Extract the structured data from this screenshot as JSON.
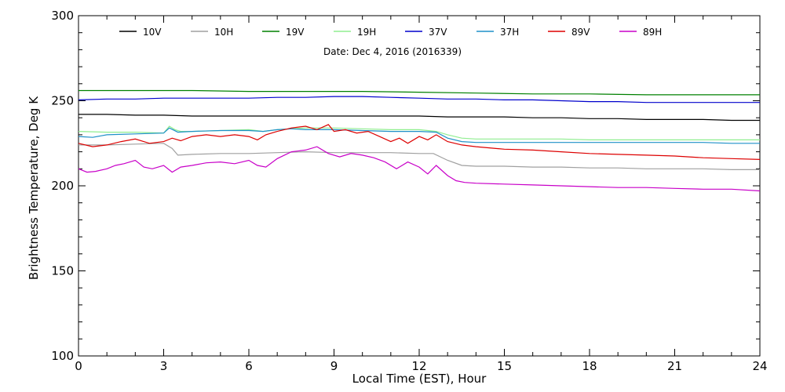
{
  "chart_data": {
    "type": "line",
    "subtitle": "Date: Dec  4, 2016 (2016339)",
    "xlabel": "Local Time (EST), Hour",
    "ylabel": "Brightness Temperature, Deg K",
    "xlim": [
      0,
      24
    ],
    "ylim": [
      100,
      300
    ],
    "x_ticks": [
      0,
      3,
      6,
      9,
      12,
      15,
      18,
      21,
      24
    ],
    "y_ticks": [
      100,
      150,
      200,
      250,
      300
    ],
    "grid": false,
    "legend_position": "top",
    "series": [
      {
        "name": "10V",
        "color": "#000000",
        "x": [
          0,
          1,
          2,
          3,
          4,
          5,
          6,
          7,
          8,
          9,
          10,
          11,
          12,
          13,
          14,
          15,
          16,
          17,
          18,
          19,
          20,
          21,
          22,
          23,
          24
        ],
        "y": [
          242,
          242,
          241.5,
          241.5,
          241,
          241,
          241,
          241,
          241,
          241,
          241,
          241,
          241,
          240.5,
          240.5,
          240.5,
          240,
          240,
          239.5,
          239.5,
          239,
          239,
          239,
          238.5,
          238.5
        ]
      },
      {
        "name": "10H",
        "color": "#a0a0a0",
        "x": [
          0,
          1,
          2,
          3,
          3.3,
          3.5,
          4,
          5,
          6,
          7,
          8,
          9,
          10,
          11,
          12,
          12.5,
          13,
          13.5,
          14,
          15,
          16,
          17,
          18,
          19,
          20,
          21,
          22,
          23,
          24
        ],
        "y": [
          224,
          224,
          224.5,
          225,
          222,
          218,
          218.5,
          219,
          219,
          219.5,
          220,
          219.5,
          219.5,
          219.5,
          219,
          219,
          215,
          212,
          211.5,
          211.5,
          211,
          211,
          210.5,
          210.5,
          210,
          210,
          210,
          209.5,
          209.5
        ]
      },
      {
        "name": "19V",
        "color": "#008000",
        "x": [
          0,
          2,
          4,
          6,
          8,
          10,
          12,
          14,
          16,
          18,
          20,
          22,
          24
        ],
        "y": [
          256,
          256,
          256,
          255.5,
          255.5,
          255.5,
          255,
          254.5,
          254,
          254,
          253.5,
          253.5,
          253.5
        ]
      },
      {
        "name": "19H",
        "color": "#90ee90",
        "x": [
          0,
          1,
          2,
          3,
          3.2,
          3.4,
          3.6,
          4,
          5,
          6,
          6.5,
          7,
          8,
          9,
          10,
          11,
          12,
          12.6,
          13,
          13.5,
          14,
          15,
          16,
          17,
          18,
          19,
          20,
          21,
          22,
          23,
          24
        ],
        "y": [
          232,
          231.5,
          231.5,
          231,
          235,
          233,
          232,
          232,
          232.5,
          233,
          232,
          233,
          234,
          234,
          233.5,
          233,
          233,
          232,
          230,
          228,
          227.5,
          227.5,
          227.5,
          227.5,
          227,
          227,
          227,
          227,
          227,
          227,
          227
        ]
      },
      {
        "name": "37V",
        "color": "#0000cc",
        "x": [
          0,
          1,
          2,
          3,
          4,
          5,
          6,
          7,
          8,
          9,
          10,
          11,
          12,
          13,
          14,
          15,
          16,
          17,
          18,
          19,
          20,
          21,
          22,
          23,
          24
        ],
        "y": [
          250.5,
          251,
          251,
          251.5,
          251.5,
          251.5,
          251.5,
          252,
          252,
          252.5,
          252.5,
          252,
          251.5,
          251,
          251,
          250.5,
          250.5,
          250,
          249.5,
          249.5,
          249,
          249,
          249,
          249,
          249
        ]
      },
      {
        "name": "37H",
        "color": "#1e90c8",
        "x": [
          0,
          0.5,
          1,
          2,
          3,
          3.2,
          3.5,
          4,
          5,
          6,
          6.5,
          7,
          7.5,
          8,
          9,
          10,
          11,
          12,
          12.6,
          13,
          13.5,
          14,
          15,
          16,
          17,
          18,
          19,
          20,
          21,
          22,
          23,
          24
        ],
        "y": [
          229,
          228.5,
          230,
          230.5,
          231,
          234,
          231.5,
          232,
          232.5,
          232.5,
          232,
          233,
          233.5,
          233,
          233,
          232.5,
          232,
          232,
          231.5,
          228,
          226,
          225.5,
          225.5,
          225.5,
          225.5,
          225.5,
          225.5,
          225.5,
          225.5,
          225.5,
          225,
          225
        ]
      },
      {
        "name": "89V",
        "color": "#dd0000",
        "x": [
          0,
          0.5,
          1,
          1.5,
          2,
          2.5,
          3,
          3.3,
          3.6,
          4,
          4.5,
          5,
          5.5,
          6,
          6.3,
          6.6,
          7,
          7.5,
          8,
          8.4,
          8.8,
          9,
          9.4,
          9.8,
          10.2,
          10.6,
          11,
          11.3,
          11.6,
          12,
          12.3,
          12.6,
          13,
          13.5,
          14,
          15,
          16,
          17,
          18,
          19,
          20,
          21,
          22,
          23,
          24
        ],
        "y": [
          225,
          223,
          224,
          226,
          227.5,
          225,
          226,
          228,
          226.5,
          229,
          230,
          229,
          230,
          229,
          227,
          230,
          232,
          234,
          235,
          233,
          236,
          232,
          233,
          231,
          232,
          229,
          226,
          228,
          225,
          229,
          227,
          230,
          226,
          224,
          223,
          221.5,
          221,
          220,
          219,
          218.5,
          218,
          217.5,
          216.5,
          216,
          215.5
        ]
      },
      {
        "name": "89H",
        "color": "#c800c8",
        "x": [
          0,
          0.3,
          0.6,
          1,
          1.3,
          1.6,
          2,
          2.3,
          2.6,
          3,
          3.3,
          3.6,
          4,
          4.5,
          5,
          5.5,
          6,
          6.3,
          6.6,
          7,
          7.5,
          8,
          8.4,
          8.8,
          9.2,
          9.6,
          10,
          10.4,
          10.8,
          11.2,
          11.6,
          12,
          12.3,
          12.6,
          13,
          13.3,
          13.6,
          14,
          15,
          16,
          17,
          18,
          19,
          20,
          21,
          22,
          23,
          24
        ],
        "y": [
          210,
          208,
          208.5,
          210,
          212,
          213,
          215,
          211,
          210,
          212,
          208,
          211,
          212,
          213.5,
          214,
          213,
          215,
          212,
          211,
          216,
          220,
          221,
          223,
          219,
          217,
          219,
          218,
          216.5,
          214,
          210,
          214,
          211,
          207,
          212,
          206,
          203,
          202,
          201.5,
          201,
          200.5,
          200,
          199.5,
          199,
          199,
          198.5,
          198,
          198,
          197
        ]
      }
    ]
  }
}
